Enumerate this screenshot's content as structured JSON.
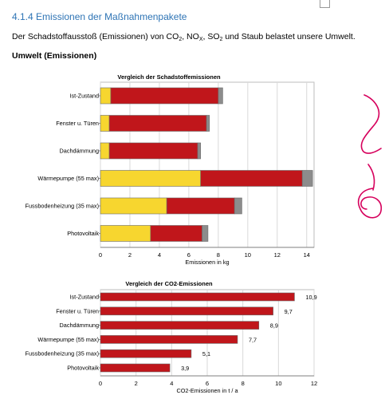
{
  "section": {
    "heading": "4.1.4 Emissionen der Maßnahmenpakete",
    "intro_before": "Der Schadstoffausstoß (Emissionen) von CO",
    "intro_sub1": "2",
    "intro_mid1": ", NO",
    "intro_sub2": "X",
    "intro_mid2": ", SO",
    "intro_sub3": "2",
    "intro_after": " und Staub belastet unsere Umwelt.",
    "subheading": "Umwelt (Emissionen)"
  },
  "annotation": {
    "description": "handwritten red marks on right margin",
    "color": "#d6005c"
  },
  "chart_data": [
    {
      "type": "bar",
      "orientation": "horizontal",
      "stacked": true,
      "title": "Vergleich der Schadstoffemissionen",
      "xlabel": "Emissionen in kg",
      "ylabel": "",
      "xlim": [
        0,
        14.5
      ],
      "xticks": [
        "0",
        "2",
        "4",
        "6",
        "8",
        "10",
        "12",
        "14"
      ],
      "grid": true,
      "categories": [
        "Ist-Zustand",
        "Fenster u. Türen",
        "Dachdämmung",
        "Wärmepumpe (55 max)",
        "Fussbodenheizung (35 max)",
        "Photovoltaik"
      ],
      "series": [
        {
          "color": "#f7d62f",
          "values": [
            0.7,
            0.6,
            0.6,
            6.8,
            4.5,
            3.4
          ]
        },
        {
          "color": "#c0161b",
          "values": [
            7.3,
            6.6,
            6.0,
            6.9,
            4.6,
            3.5
          ]
        },
        {
          "color": "#8c8c8c",
          "values": [
            0.3,
            0.2,
            0.2,
            0.7,
            0.5,
            0.4
          ]
        }
      ]
    },
    {
      "type": "bar",
      "orientation": "horizontal",
      "title": "Vergleich der CO2-Emissionen",
      "xlabel": "CO2-Emissionen in t / a",
      "ylabel": "",
      "xlim": [
        0,
        12
      ],
      "xticks": [
        "0",
        "2",
        "4",
        "6",
        "8",
        "10",
        "12"
      ],
      "grid": true,
      "categories": [
        "Ist-Zustand",
        "Fenster u. Türen",
        "Dachdämmung",
        "Wärmepumpe (55 max)",
        "Fussbodenheizung (35 max)",
        "Photovoltaik"
      ],
      "series": [
        {
          "color": "#c0161b",
          "values": [
            10.9,
            9.7,
            8.9,
            7.7,
            5.1,
            3.9
          ]
        }
      ],
      "data_labels": [
        "10,9",
        "9,7",
        "8,9",
        "7,7",
        "5,1",
        "3,9"
      ]
    }
  ]
}
